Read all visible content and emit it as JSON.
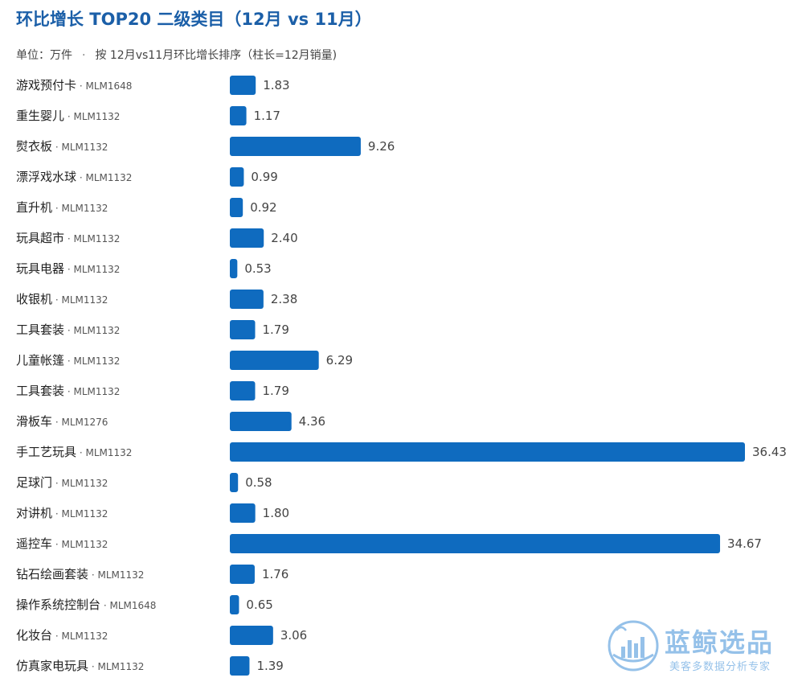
{
  "title": "环比增长 TOP20 二级类目（12月 vs 11月）",
  "subtitle": {
    "unit": "单位：万件",
    "sep": "·",
    "note": "按 12月vs11月环比增长排序（柱长=12月销量)"
  },
  "colors": {
    "bar": "#0f6bbf",
    "title": "#1b5fa8",
    "watermark": "#3f8fd8"
  },
  "watermark": {
    "brand": "蓝鲸选品",
    "tagline": "美客多数据分析专家"
  },
  "chart_data": {
    "type": "bar",
    "orientation": "horizontal",
    "title": "环比增长 TOP20 二级类目（12月 vs 11月）",
    "unit": "万件",
    "categories": [
      {
        "name": "游戏预付卡",
        "code": "MLM1648"
      },
      {
        "name": "重生婴儿",
        "code": "MLM1132"
      },
      {
        "name": "熨衣板",
        "code": "MLM1132"
      },
      {
        "name": "漂浮戏水球",
        "code": "MLM1132"
      },
      {
        "name": "直升机",
        "code": "MLM1132"
      },
      {
        "name": "玩具超市",
        "code": "MLM1132"
      },
      {
        "name": "玩具电器",
        "code": "MLM1132"
      },
      {
        "name": "收银机",
        "code": "MLM1132"
      },
      {
        "name": "工具套装",
        "code": "MLM1132"
      },
      {
        "name": "儿童帐篷",
        "code": "MLM1132"
      },
      {
        "name": "工具套装",
        "code": "MLM1132"
      },
      {
        "name": "滑板车",
        "code": "MLM1276"
      },
      {
        "name": "手工艺玩具",
        "code": "MLM1132"
      },
      {
        "name": "足球门",
        "code": "MLM1132"
      },
      {
        "name": "对讲机",
        "code": "MLM1132"
      },
      {
        "name": "遥控车",
        "code": "MLM1132"
      },
      {
        "name": "钻石绘画套装",
        "code": "MLM1132"
      },
      {
        "name": "操作系统控制台",
        "code": "MLM1648"
      },
      {
        "name": "化妆台",
        "code": "MLM1132"
      },
      {
        "name": "仿真家电玩具",
        "code": "MLM1132"
      }
    ],
    "values": [
      1.83,
      1.17,
      9.26,
      0.99,
      0.92,
      2.4,
      0.53,
      2.38,
      1.79,
      6.29,
      1.79,
      4.36,
      36.43,
      0.58,
      1.8,
      34.67,
      1.76,
      0.65,
      3.06,
      1.39
    ],
    "value_labels": [
      "1.83",
      "1.17",
      "9.26",
      "0.99",
      "0.92",
      "2.40",
      "0.53",
      "2.38",
      "1.79",
      "6.29",
      "1.79",
      "4.36",
      "36.43",
      "0.58",
      "1.80",
      "34.67",
      "1.76",
      "0.65",
      "3.06",
      "1.39"
    ],
    "xlim": [
      0,
      36.43
    ],
    "grid": false,
    "legend": "none"
  }
}
